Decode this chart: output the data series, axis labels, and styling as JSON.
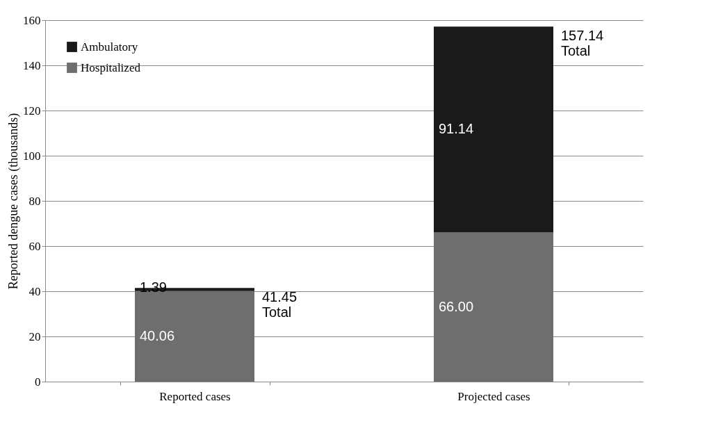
{
  "chart_data": {
    "type": "bar",
    "stacked": true,
    "ylabel": "Reported dengue cases (thousands)",
    "categories": [
      "Reported cases",
      "Projected cases"
    ],
    "series": [
      {
        "name": "Hospitalized",
        "color": "#6e6e6e",
        "values": [
          40.06,
          66.0
        ],
        "value_labels": [
          "40.06",
          "66.00"
        ]
      },
      {
        "name": "Ambulatory",
        "color": "#1a1a1a",
        "values": [
          1.39,
          91.14
        ],
        "value_labels": [
          "1.39",
          "91.14"
        ]
      }
    ],
    "totals": [
      "41.45\nTotal",
      "157.14\nTotal"
    ],
    "ylim": [
      0,
      160
    ],
    "yticks": [
      0,
      20,
      40,
      60,
      80,
      100,
      120,
      140,
      160
    ],
    "grid": "y",
    "legend": "top left"
  }
}
